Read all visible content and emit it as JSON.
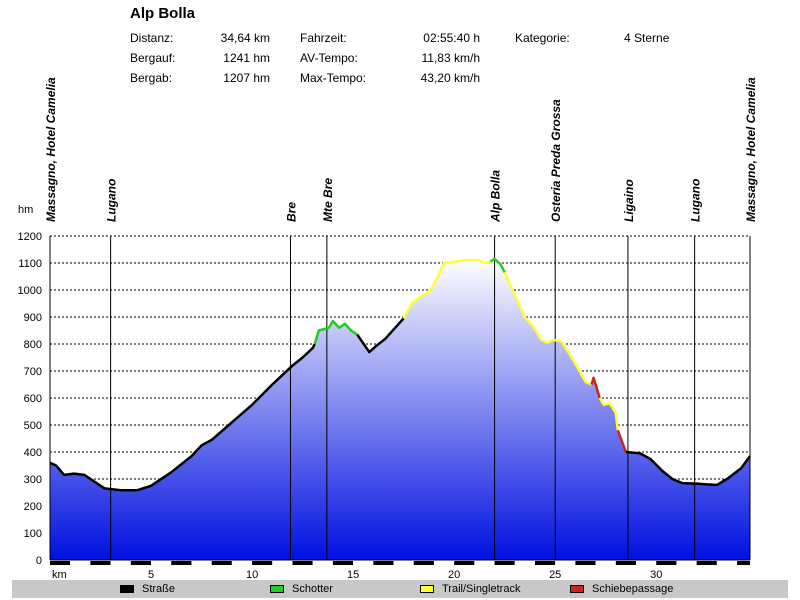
{
  "header": {
    "title": "Alp Bolla",
    "distanz_label": "Distanz:",
    "distanz_value": "34,64 km",
    "bergauf_label": "Bergauf:",
    "bergauf_value": "1241 hm",
    "bergab_label": "Bergab:",
    "bergab_value": "1207 hm",
    "fahrzeit_label": "Fahrzeit:",
    "fahrzeit_value": "02:55:40 h",
    "avtempo_label": "AV-Tempo:",
    "avtempo_value": "11,83 km/h",
    "maxtempo_label": "Max-Tempo:",
    "maxtempo_value": "43,20 km/h",
    "kategorie_label": "Kategorie:",
    "kategorie_value": "4 Sterne"
  },
  "legend": {
    "items": [
      {
        "label": "Straße",
        "color": "#000000"
      },
      {
        "label": "Schotter",
        "color": "#22cc22"
      },
      {
        "label": "Trail/Singletrack",
        "color": "#ffff33"
      },
      {
        "label": "Schiebepassage",
        "color": "#cc2222"
      }
    ]
  },
  "chart_data": {
    "type": "area",
    "xlabel": "km",
    "ylabel": "hm",
    "xlim": [
      0,
      34.64
    ],
    "ylim": [
      0,
      1200
    ],
    "x_ticks": [
      5,
      10,
      15,
      20,
      25,
      30
    ],
    "y_ticks": [
      0,
      100,
      200,
      300,
      400,
      500,
      600,
      700,
      800,
      900,
      1000,
      1100,
      1200
    ],
    "grid": true,
    "fill_gradient": [
      "#ffffff",
      "#0010e0"
    ],
    "series": [
      {
        "name": "Straße",
        "color": "#000000",
        "points": [
          [
            0,
            360
          ],
          [
            0.3,
            350
          ],
          [
            0.7,
            315
          ],
          [
            1.2,
            320
          ],
          [
            1.7,
            315
          ],
          [
            2.2,
            290
          ],
          [
            2.7,
            265
          ],
          [
            3.5,
            258
          ],
          [
            4.3,
            258
          ],
          [
            5,
            275
          ],
          [
            6,
            325
          ],
          [
            7,
            385
          ],
          [
            7.5,
            425
          ],
          [
            8,
            445
          ],
          [
            9,
            510
          ],
          [
            10,
            575
          ],
          [
            11,
            650
          ],
          [
            12,
            720
          ],
          [
            12.5,
            750
          ],
          [
            13,
            785
          ],
          [
            13.1,
            800
          ]
        ]
      },
      {
        "name": "Schotter",
        "color": "#22cc22",
        "points": [
          [
            13.1,
            800
          ],
          [
            13.3,
            850
          ],
          [
            13.8,
            860
          ],
          [
            14,
            885
          ],
          [
            14.3,
            860
          ],
          [
            14.6,
            875
          ],
          [
            14.9,
            850
          ],
          [
            15.2,
            835
          ]
        ]
      },
      {
        "name": "Straße",
        "color": "#000000",
        "points": [
          [
            15.2,
            835
          ],
          [
            15.8,
            770
          ],
          [
            16.1,
            790
          ],
          [
            16.6,
            820
          ],
          [
            17.2,
            870
          ],
          [
            17.5,
            895
          ]
        ]
      },
      {
        "name": "Trail/Singletrack",
        "color": "#ffff33",
        "points": [
          [
            17.5,
            895
          ],
          [
            17.9,
            950
          ],
          [
            18.3,
            975
          ],
          [
            18.8,
            995
          ],
          [
            19.2,
            1050
          ],
          [
            19.5,
            1100
          ],
          [
            20,
            1105
          ],
          [
            20.5,
            1110
          ],
          [
            21.2,
            1110
          ],
          [
            21.5,
            1100
          ],
          [
            21.8,
            1105
          ]
        ]
      },
      {
        "name": "Schotter",
        "color": "#22cc22",
        "points": [
          [
            21.8,
            1105
          ],
          [
            22,
            1115
          ],
          [
            22.3,
            1095
          ],
          [
            22.5,
            1065
          ]
        ]
      },
      {
        "name": "Trail/Singletrack",
        "color": "#ffff33",
        "points": [
          [
            22.5,
            1065
          ],
          [
            23,
            980
          ],
          [
            23.5,
            900
          ],
          [
            24,
            855
          ],
          [
            24.3,
            815
          ],
          [
            24.6,
            805
          ],
          [
            24.9,
            815
          ],
          [
            25.3,
            810
          ],
          [
            25.7,
            765
          ],
          [
            26.2,
            700
          ],
          [
            26.5,
            660
          ],
          [
            26.8,
            650
          ]
        ]
      },
      {
        "name": "Schiebepassage",
        "color": "#cc2222",
        "points": [
          [
            26.8,
            650
          ],
          [
            26.9,
            675
          ],
          [
            27.2,
            600
          ]
        ]
      },
      {
        "name": "Trail/Singletrack",
        "color": "#ffff33",
        "points": [
          [
            27.2,
            600
          ],
          [
            27.4,
            575
          ],
          [
            27.7,
            580
          ],
          [
            28,
            545
          ],
          [
            28.1,
            480
          ]
        ]
      },
      {
        "name": "Schiebepassage",
        "color": "#cc2222",
        "points": [
          [
            28.1,
            480
          ],
          [
            28.5,
            400
          ]
        ]
      },
      {
        "name": "Straße",
        "color": "#000000",
        "points": [
          [
            28.5,
            400
          ],
          [
            29.2,
            395
          ],
          [
            29.7,
            375
          ],
          [
            30.3,
            330
          ],
          [
            30.8,
            300
          ],
          [
            31.3,
            285
          ],
          [
            32,
            283
          ],
          [
            32.5,
            280
          ],
          [
            33,
            278
          ],
          [
            33.5,
            300
          ],
          [
            34.2,
            340
          ],
          [
            34.64,
            385
          ]
        ]
      }
    ],
    "waypoints": [
      {
        "label": "Massagno, Hotel Camelia",
        "km": 0
      },
      {
        "label": "Lugano",
        "km": 3
      },
      {
        "label": "Bre",
        "km": 11.9
      },
      {
        "label": "Mte Bre",
        "km": 13.7
      },
      {
        "label": "Alp Bolla",
        "km": 22
      },
      {
        "label": "Osteria Preda Grossa",
        "km": 25
      },
      {
        "label": "Ligaino",
        "km": 28.6
      },
      {
        "label": "Lugano",
        "km": 31.9
      },
      {
        "label": "Massagno, Hotel Camelia",
        "km": 34.64
      }
    ]
  }
}
